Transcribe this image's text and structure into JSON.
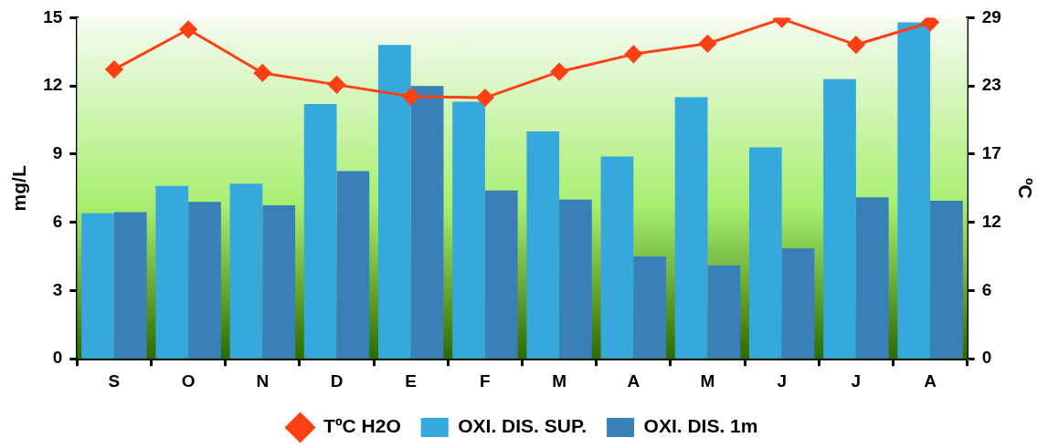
{
  "chart_data": {
    "type": "bar",
    "ylabel": "mg/L",
    "y2label": "ºC",
    "categories": [
      "S",
      "O",
      "N",
      "D",
      "E",
      "F",
      "M",
      "A",
      "M",
      "J",
      "J",
      "A"
    ],
    "series": [
      {
        "name": "OXI. DIS. SUP.",
        "color": "#35a8dc",
        "values": [
          6.4,
          7.6,
          7.7,
          11.2,
          13.8,
          11.3,
          10.0,
          8.9,
          11.5,
          9.3,
          12.3,
          14.8
        ]
      },
      {
        "name": "OXI. DIS. 1m",
        "color": "#3a80b8",
        "values": [
          6.45,
          6.9,
          6.75,
          8.25,
          12.0,
          7.4,
          7.0,
          4.5,
          4.1,
          4.85,
          7.1,
          6.95
        ]
      },
      {
        "name": "TºC H2O",
        "color": "#ff4015",
        "type": "line",
        "axis": "y2",
        "values": [
          24.6,
          28.0,
          24.3,
          23.3,
          22.3,
          22.2,
          24.4,
          25.9,
          26.8,
          28.9,
          26.7,
          28.6
        ]
      }
    ],
    "ylim": [
      0,
      15
    ],
    "yticks": [
      0,
      3,
      6,
      9,
      12,
      15
    ],
    "y2lim": [
      0,
      29
    ],
    "y2ticks": [
      0,
      {
        "value": 5.8,
        "label": "6"
      },
      {
        "value": 11.6,
        "label": "12"
      },
      {
        "value": 17.4,
        "label": "17"
      },
      {
        "value": 23.2,
        "label": "23"
      },
      29
    ],
    "grid": false,
    "legend": "bottom",
    "marker": "diamond",
    "line_style": "solid"
  }
}
